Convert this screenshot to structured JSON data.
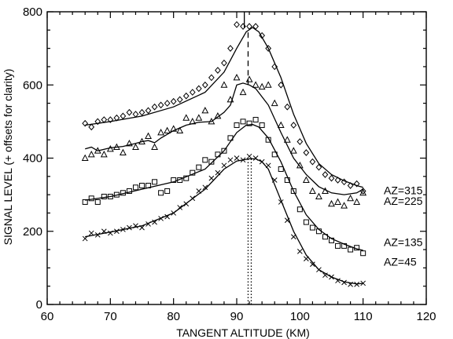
{
  "chart_data": {
    "type": "scatter",
    "xlabel": "TANGENT ALTITUDE (KM)",
    "ylabel": "SIGNAL LEVEL (+ offsets for clarity)",
    "xlim": [
      60,
      120
    ],
    "ylim": [
      0,
      800
    ],
    "x_ticks": [
      60,
      70,
      80,
      90,
      100,
      110,
      120
    ],
    "y_ticks": [
      0,
      200,
      400,
      600,
      800
    ],
    "grid": false,
    "legend": "none",
    "reference_lines": [
      {
        "x": 91.2,
        "y_from": 755,
        "y_to": 800,
        "style": "solid"
      },
      {
        "x": 91.8,
        "y_from": 600,
        "y_to": 755,
        "style": "dashed"
      },
      {
        "x": 91.8,
        "y_from": 0,
        "y_to": 400,
        "style": "dotted"
      },
      {
        "x": 92.3,
        "y_from": 0,
        "y_to": 400,
        "style": "dotted"
      }
    ],
    "series": [
      {
        "name": "AZ=315",
        "marker": "diamond",
        "label_y": 312,
        "x": [
          66,
          67,
          68,
          69,
          70,
          71,
          72,
          73,
          74,
          75,
          76,
          77,
          78,
          79,
          80,
          81,
          82,
          83,
          84,
          85,
          86,
          87,
          88,
          89,
          90,
          91,
          92,
          93,
          94,
          95,
          96,
          97,
          98,
          99,
          100,
          101,
          102,
          103,
          104,
          105,
          106,
          107,
          108,
          109,
          110
        ],
        "y": [
          495,
          485,
          500,
          505,
          505,
          510,
          515,
          525,
          520,
          525,
          530,
          540,
          545,
          550,
          555,
          560,
          570,
          580,
          590,
          600,
          620,
          640,
          660,
          700,
          765,
          760,
          760,
          760,
          735,
          700,
          650,
          600,
          540,
          490,
          445,
          415,
          390,
          375,
          355,
          345,
          340,
          335,
          325,
          330,
          310
        ],
        "fit": [
          [
            66,
            490
          ],
          [
            70,
            500
          ],
          [
            75,
            515
          ],
          [
            80,
            540
          ],
          [
            85,
            580
          ],
          [
            88,
            635
          ],
          [
            90,
            700
          ],
          [
            91.5,
            745
          ],
          [
            92.5,
            757
          ],
          [
            93.5,
            745
          ],
          [
            95,
            700
          ],
          [
            97,
            620
          ],
          [
            99,
            520
          ],
          [
            101,
            440
          ],
          [
            103,
            385
          ],
          [
            105,
            355
          ],
          [
            107,
            338
          ],
          [
            109,
            325
          ],
          [
            110,
            320
          ]
        ]
      },
      {
        "name": "AZ=225",
        "marker": "triangle",
        "label_y": 283,
        "x": [
          66,
          67,
          68,
          69,
          70,
          71,
          72,
          73,
          74,
          75,
          76,
          77,
          78,
          79,
          80,
          81,
          82,
          83,
          84,
          85,
          86,
          87,
          88,
          89,
          90,
          91,
          92,
          93,
          94,
          95,
          96,
          97,
          98,
          99,
          100,
          101,
          102,
          103,
          104,
          105,
          106,
          107,
          108,
          109,
          110
        ],
        "y": [
          400,
          410,
          420,
          410,
          425,
          430,
          415,
          440,
          430,
          445,
          460,
          430,
          470,
          475,
          480,
          475,
          510,
          500,
          510,
          530,
          500,
          515,
          600,
          560,
          620,
          580,
          615,
          600,
          595,
          600,
          550,
          490,
          450,
          420,
          380,
          340,
          310,
          295,
          310,
          275,
          280,
          270,
          290,
          280,
          305
        ],
        "fit": [
          [
            66,
            425
          ],
          [
            67,
            430
          ],
          [
            68,
            420
          ],
          [
            70,
            428
          ],
          [
            72,
            432
          ],
          [
            74,
            440
          ],
          [
            75,
            445
          ],
          [
            76,
            448
          ],
          [
            77,
            442
          ],
          [
            78,
            455
          ],
          [
            80,
            475
          ],
          [
            82,
            490
          ],
          [
            84,
            498
          ],
          [
            86,
            500
          ],
          [
            88,
            525
          ],
          [
            89,
            545
          ],
          [
            90,
            600
          ],
          [
            91,
            605
          ],
          [
            92,
            600
          ],
          [
            93,
            590
          ],
          [
            95,
            545
          ],
          [
            97,
            470
          ],
          [
            99,
            400
          ],
          [
            101,
            355
          ],
          [
            103,
            322
          ],
          [
            105,
            305
          ],
          [
            107,
            300
          ],
          [
            109,
            305
          ],
          [
            110,
            315
          ]
        ]
      },
      {
        "name": "AZ=135",
        "marker": "square",
        "label_y": 170,
        "x": [
          66,
          67,
          68,
          69,
          70,
          71,
          72,
          73,
          74,
          75,
          76,
          77,
          78,
          79,
          80,
          81,
          82,
          83,
          84,
          85,
          86,
          87,
          88,
          89,
          90,
          91,
          92,
          93,
          94,
          95,
          96,
          97,
          98,
          99,
          100,
          101,
          102,
          103,
          104,
          105,
          106,
          107,
          108,
          109,
          110
        ],
        "y": [
          280,
          290,
          280,
          295,
          295,
          300,
          305,
          310,
          320,
          325,
          325,
          335,
          305,
          310,
          340,
          340,
          345,
          360,
          375,
          395,
          390,
          410,
          420,
          455,
          490,
          500,
          495,
          505,
          490,
          450,
          410,
          370,
          340,
          310,
          260,
          225,
          210,
          200,
          185,
          175,
          160,
          160,
          150,
          155,
          140
        ],
        "fit": [
          [
            66,
            285
          ],
          [
            70,
            295
          ],
          [
            75,
            315
          ],
          [
            80,
            335
          ],
          [
            85,
            370
          ],
          [
            88,
            420
          ],
          [
            90,
            470
          ],
          [
            91.5,
            490
          ],
          [
            92.5,
            492
          ],
          [
            93.5,
            485
          ],
          [
            95,
            455
          ],
          [
            97,
            390
          ],
          [
            99,
            310
          ],
          [
            101,
            245
          ],
          [
            103,
            205
          ],
          [
            105,
            180
          ],
          [
            107,
            165
          ],
          [
            109,
            152
          ],
          [
            110,
            148
          ]
        ]
      },
      {
        "name": "AZ=45",
        "marker": "x",
        "label_y": 117,
        "x": [
          66,
          67,
          68,
          69,
          70,
          71,
          72,
          73,
          74,
          75,
          76,
          77,
          78,
          79,
          80,
          81,
          82,
          83,
          84,
          85,
          86,
          87,
          88,
          89,
          90,
          91,
          92,
          93,
          94,
          95,
          96,
          97,
          98,
          99,
          100,
          101,
          102,
          103,
          104,
          105,
          106,
          107,
          108,
          109,
          110
        ],
        "y": [
          180,
          195,
          190,
          200,
          195,
          200,
          205,
          210,
          215,
          210,
          220,
          225,
          235,
          240,
          250,
          265,
          275,
          290,
          310,
          320,
          345,
          360,
          380,
          395,
          400,
          395,
          405,
          400,
          390,
          380,
          340,
          280,
          230,
          185,
          145,
          125,
          110,
          95,
          80,
          75,
          65,
          60,
          55,
          55,
          58
        ],
        "fit": [
          [
            66,
            185
          ],
          [
            70,
            198
          ],
          [
            75,
            215
          ],
          [
            80,
            250
          ],
          [
            85,
            315
          ],
          [
            88,
            370
          ],
          [
            90,
            392
          ],
          [
            92,
            398
          ],
          [
            93,
            398
          ],
          [
            94,
            390
          ],
          [
            95,
            370
          ],
          [
            97,
            285
          ],
          [
            99,
            200
          ],
          [
            101,
            135
          ],
          [
            103,
            95
          ],
          [
            105,
            75
          ],
          [
            107,
            62
          ],
          [
            109,
            56
          ],
          [
            110,
            58
          ]
        ]
      }
    ]
  }
}
